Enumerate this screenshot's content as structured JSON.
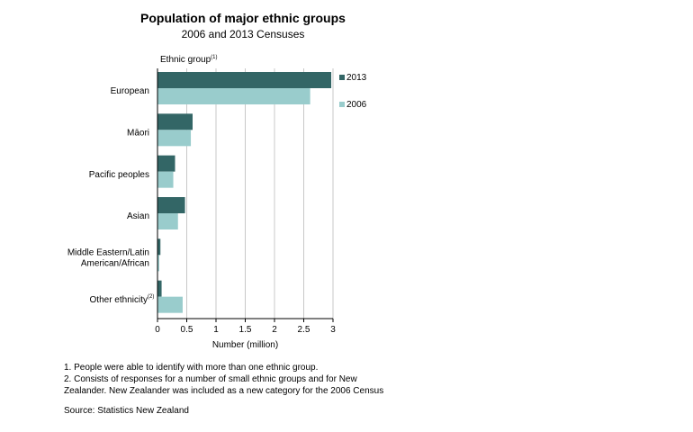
{
  "title": "Population of major ethnic groups",
  "subtitle": "2006 and 2013 Censuses",
  "chart_data": {
    "type": "bar",
    "orientation": "horizontal",
    "title": "Population of major ethnic groups",
    "subtitle": "2006 and 2013 Censuses",
    "categories": [
      "European",
      "Māori",
      "Pacific peoples",
      "Asian",
      "Middle Eastern/Latin American/African",
      "Other ethnicity"
    ],
    "category_label_lines": [
      [
        "European"
      ],
      [
        "Māori"
      ],
      [
        "Pacific peoples"
      ],
      [
        "Asian"
      ],
      [
        "Middle Eastern/Latin",
        "American/African"
      ],
      [
        "Other ethnicity"
      ]
    ],
    "category_superscripts": [
      "",
      "",
      "",
      "",
      "",
      "(2)"
    ],
    "series": [
      {
        "name": "2013",
        "color": "#336666",
        "values": [
          2.97,
          0.6,
          0.3,
          0.47,
          0.05,
          0.07
        ]
      },
      {
        "name": "2006",
        "color": "#99cccc",
        "values": [
          2.61,
          0.57,
          0.27,
          0.35,
          0.03,
          0.43
        ]
      }
    ],
    "xlabel": "Number (million)",
    "ylabel": "Ethnic group",
    "ylabel_superscript": "(1)",
    "xlim": [
      0,
      3
    ],
    "xticks": [
      "0",
      "0.5",
      "1",
      "1.5",
      "2",
      "2.5",
      "3"
    ],
    "grid": "vertical",
    "legend": "right"
  },
  "footnotes": [
    "1. People  were able to identify with more than one ethnic group.",
    "2. Consists of responses for a number of small ethnic groups and  for New",
    "Zealander. New Zealander was included as a new category for the 2006 Census"
  ],
  "source": "Source: Statistics New Zealand"
}
